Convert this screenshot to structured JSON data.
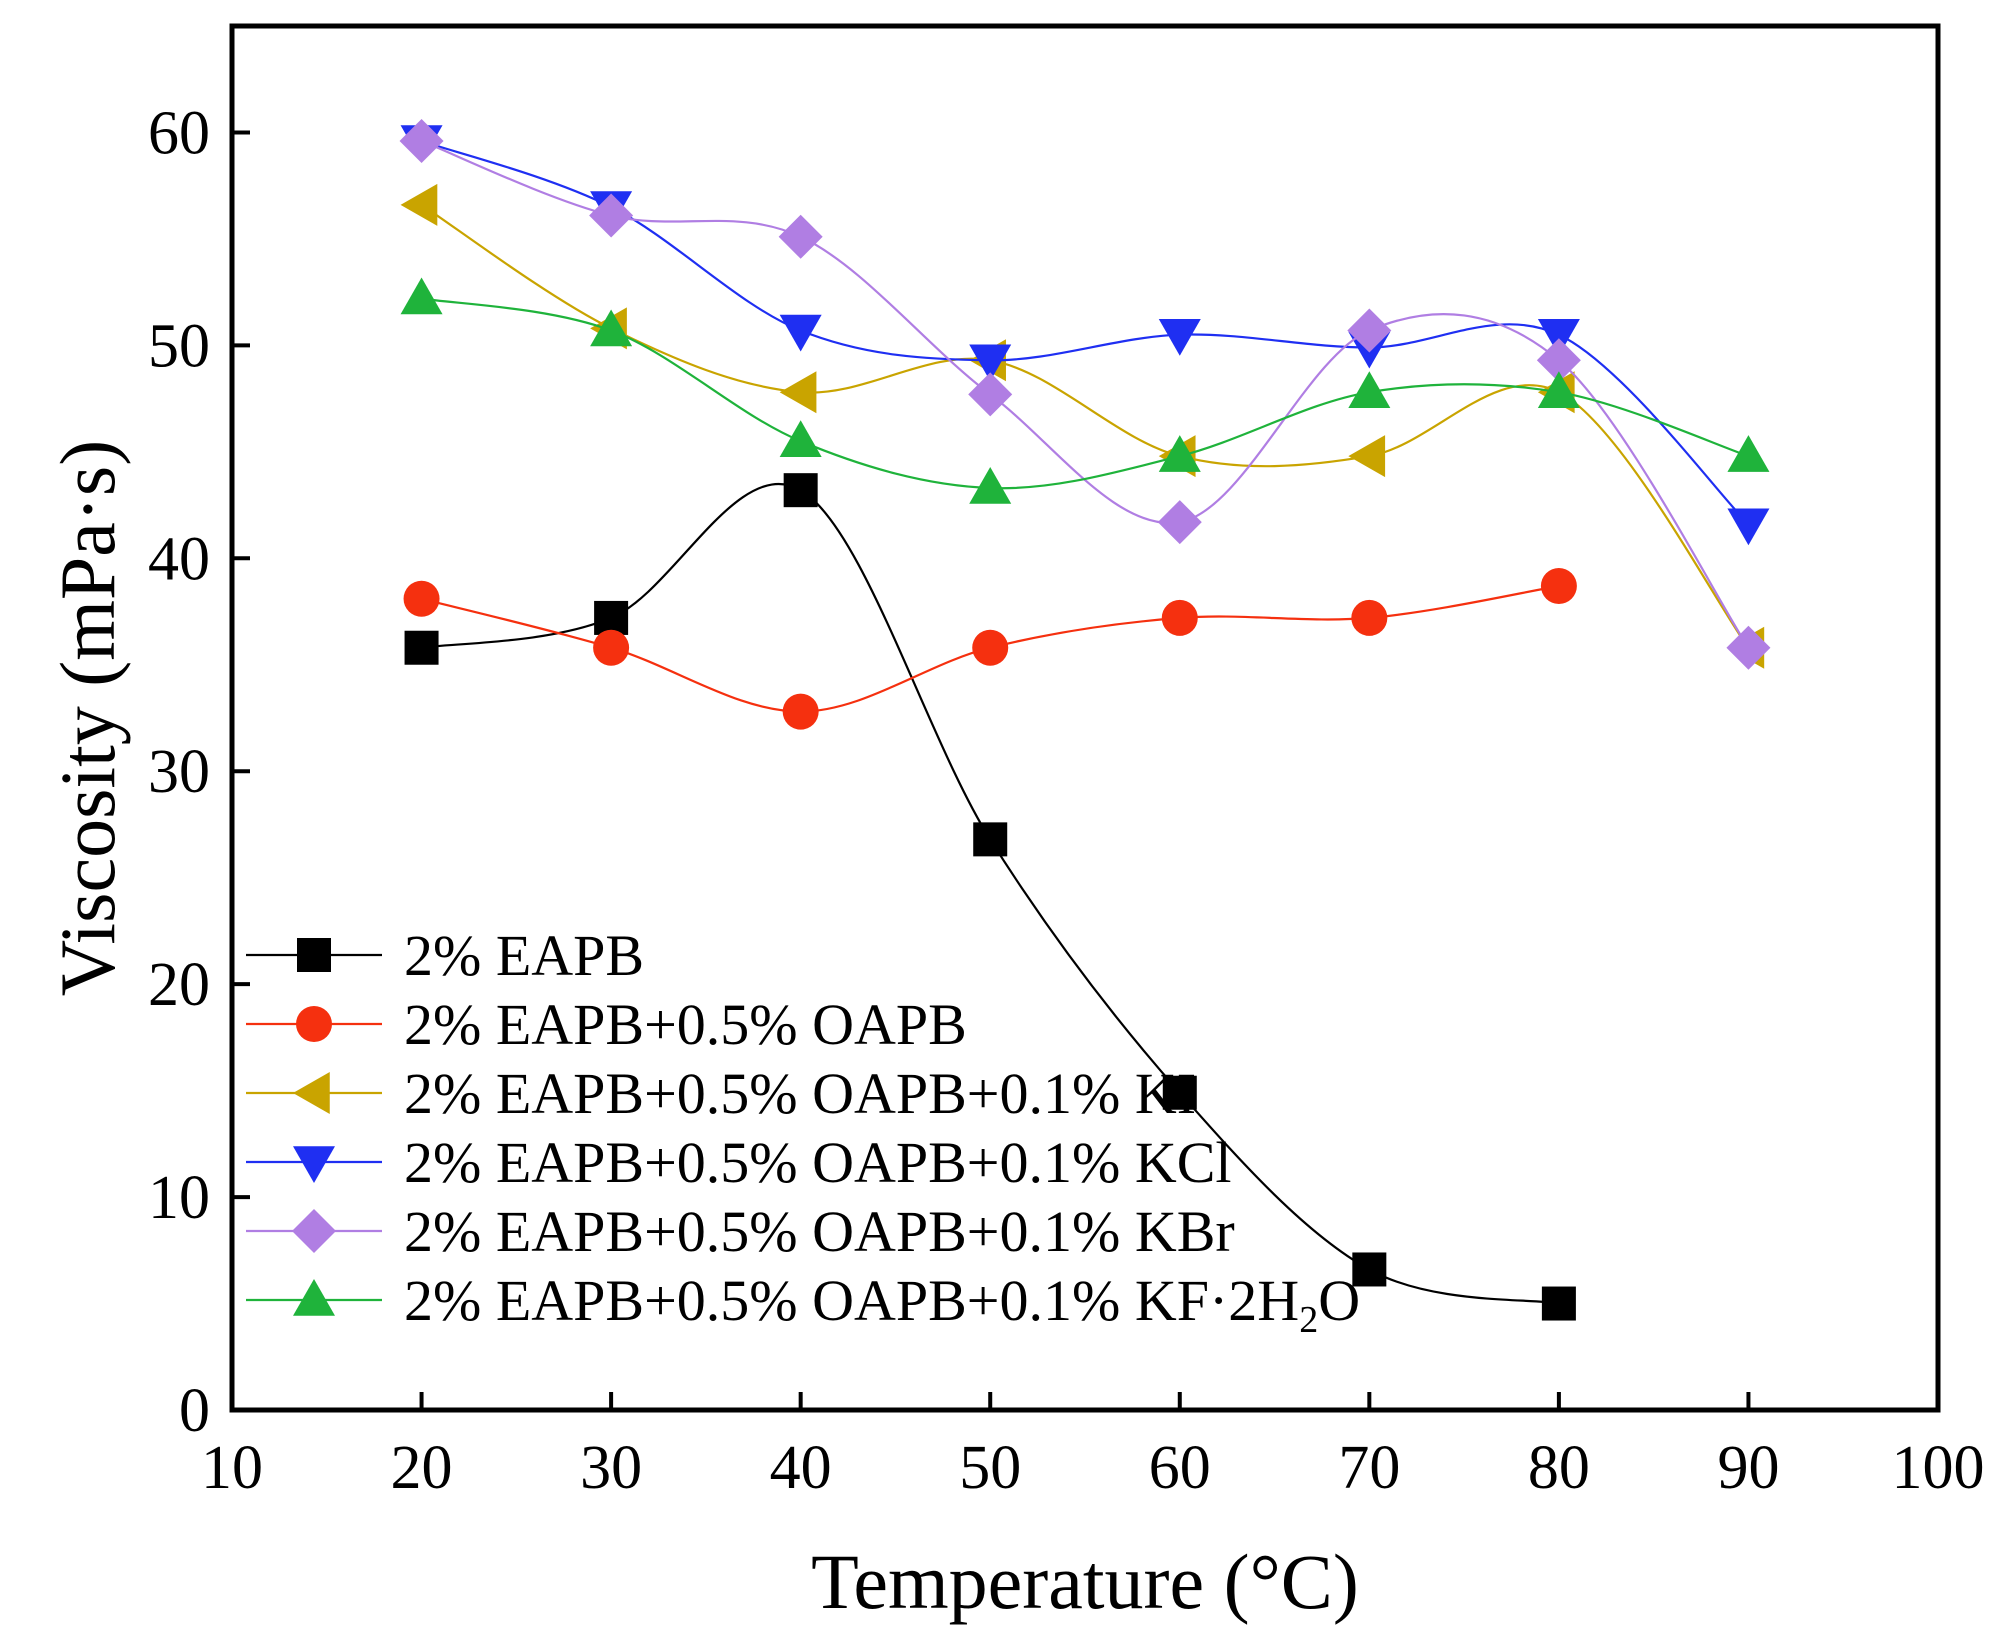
{
  "chart_data": {
    "type": "line",
    "xlabel": "Temperature (°C)",
    "ylabel": "Viscosity (mPa·s)",
    "xlim": [
      10,
      100
    ],
    "ylim": [
      0,
      65
    ],
    "xticks": [
      10,
      20,
      30,
      40,
      50,
      60,
      70,
      80,
      90,
      100
    ],
    "yticks": [
      0,
      10,
      20,
      30,
      40,
      50,
      60
    ],
    "grid": false,
    "legend_position": "bottom-left",
    "smooth_lines": true,
    "series": [
      {
        "name": "2% EAPB",
        "color": "#000000",
        "marker": "square",
        "x": [
          20,
          30,
          40,
          50,
          60,
          70,
          80
        ],
        "y": [
          35.8,
          37.2,
          43.2,
          26.8,
          14.9,
          6.6,
          5.0
        ]
      },
      {
        "name": "2% EAPB+0.5% OAPB",
        "color": "#f5300f",
        "marker": "circle",
        "x": [
          20,
          30,
          40,
          50,
          60,
          70,
          80
        ],
        "y": [
          38.1,
          35.8,
          32.8,
          35.8,
          37.2,
          37.2,
          38.7
        ]
      },
      {
        "name": "2% EAPB+0.5% OAPB+0.1% KI",
        "color": "#c9a400",
        "marker": "triangle-left",
        "x": [
          20,
          30,
          40,
          50,
          60,
          70,
          80,
          90
        ],
        "y": [
          56.6,
          50.8,
          47.8,
          49.3,
          44.8,
          44.8,
          47.8,
          35.8
        ]
      },
      {
        "name": "2% EAPB+0.5% OAPB+0.1% KCl",
        "color": "#1f2ff2",
        "marker": "triangle-down",
        "x": [
          20,
          30,
          40,
          50,
          60,
          70,
          80,
          90
        ],
        "y": [
          59.6,
          56.5,
          50.7,
          49.3,
          50.5,
          49.9,
          50.5,
          41.6
        ]
      },
      {
        "name": "2% EAPB+0.5% OAPB+0.1% KBr",
        "color": "#b07ee3",
        "marker": "diamond",
        "x": [
          20,
          30,
          40,
          50,
          60,
          70,
          80,
          90
        ],
        "y": [
          59.6,
          56.1,
          55.1,
          47.7,
          41.7,
          50.7,
          49.3,
          35.8
        ]
      },
      {
        "name": "2% EAPB+0.5% OAPB+0.1% KF·2H",
        "name_subscript": "2",
        "name_suffix": "O",
        "color": "#1fb33b",
        "marker": "triangle-up",
        "x": [
          20,
          30,
          40,
          50,
          60,
          70,
          80,
          90
        ],
        "y": [
          52.2,
          50.7,
          45.5,
          43.3,
          44.8,
          47.8,
          47.8,
          44.8
        ]
      }
    ]
  }
}
